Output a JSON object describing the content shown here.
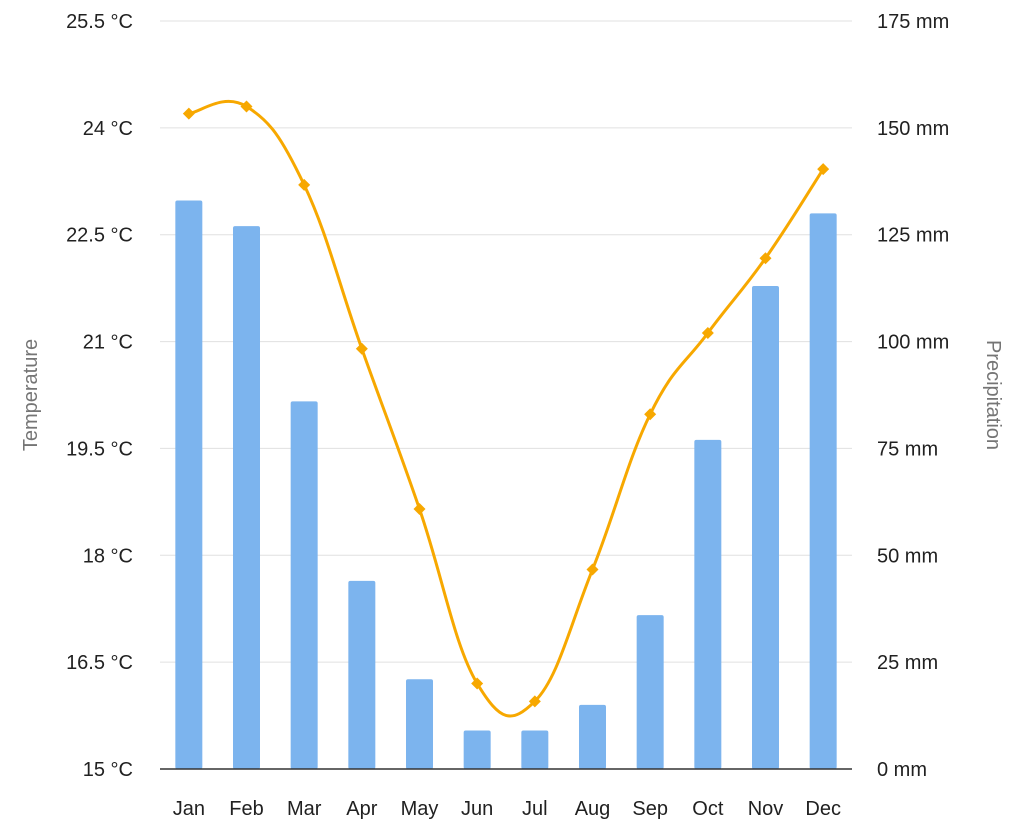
{
  "chart_data": {
    "type": "bar+line",
    "categories": [
      "Jan",
      "Feb",
      "Mar",
      "Apr",
      "May",
      "Jun",
      "Jul",
      "Aug",
      "Sep",
      "Oct",
      "Nov",
      "Dec"
    ],
    "series": [
      {
        "name": "Precipitation",
        "type": "bar",
        "axis": "right",
        "unit": "mm",
        "color": "#7cb4ee",
        "values": [
          133,
          127,
          86,
          44,
          21,
          9,
          9,
          15,
          36,
          77,
          113,
          130
        ]
      },
      {
        "name": "Temperature",
        "type": "line",
        "axis": "left",
        "unit": "°C",
        "color": "#f7a800",
        "values": [
          24.2,
          24.3,
          23.2,
          20.9,
          18.65,
          16.2,
          15.95,
          17.8,
          19.98,
          21.12,
          22.17,
          23.42
        ]
      }
    ],
    "left_axis": {
      "label": "Temperature",
      "range": [
        15,
        25.5
      ],
      "ticks": [
        "15 °C",
        "16.5 °C",
        "18 °C",
        "19.5 °C",
        "21 °C",
        "22.5 °C",
        "24 °C",
        "25.5 °C"
      ]
    },
    "right_axis": {
      "label": "Precipitation",
      "range": [
        0,
        175
      ],
      "ticks": [
        "0 mm",
        "25 mm",
        "50 mm",
        "75 mm",
        "100 mm",
        "125 mm",
        "150 mm",
        "175 mm"
      ]
    },
    "grid": true,
    "legend": "none"
  }
}
